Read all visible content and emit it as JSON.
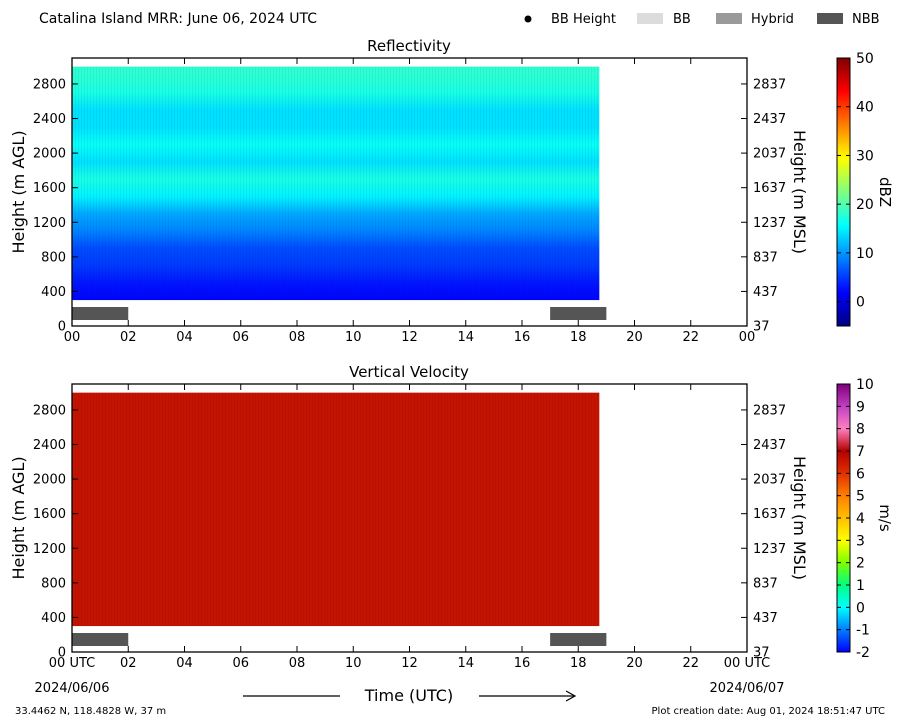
{
  "header": {
    "title": "Catalina Island MRR:  June 06, 2024 UTC",
    "legend": [
      {
        "label": "BB Height",
        "symbol": "dot",
        "color": "#000000"
      },
      {
        "label": "BB",
        "symbol": "rect",
        "color": "#dcdcdc"
      },
      {
        "label": "Hybrid",
        "symbol": "rect",
        "color": "#9a9a9a"
      },
      {
        "label": "NBB",
        "symbol": "rect",
        "color": "#555555"
      }
    ]
  },
  "chart_data": [
    {
      "type": "heatmap",
      "title": "Reflectivity",
      "ylabel_left": "Height (m AGL)",
      "ylabel_right": "Height (m MSL)",
      "x_ticks": [
        "00",
        "02",
        "04",
        "06",
        "08",
        "10",
        "12",
        "14",
        "16",
        "18",
        "20",
        "22",
        "00"
      ],
      "y_ticks_left": [
        0,
        400,
        800,
        1200,
        1600,
        2000,
        2400,
        2800
      ],
      "y_ticks_right": [
        37,
        437,
        837,
        1237,
        1637,
        2037,
        2437,
        2837
      ],
      "xlim_hours": [
        0,
        24
      ],
      "ylim_m": [
        0,
        3100
      ],
      "data_extent": {
        "hours": [
          0,
          18.75
        ],
        "height_m": [
          300,
          3000
        ]
      },
      "colorbar": {
        "label": "dBZ",
        "range": [
          -5,
          50
        ],
        "ticks": [
          0,
          10,
          20,
          30,
          40,
          50
        ],
        "colors": [
          "#00007f",
          "#0000ff",
          "#007fff",
          "#00ffff",
          "#7fff7f",
          "#ffff00",
          "#ff7f00",
          "#ff0000",
          "#7f0000"
        ]
      },
      "profile_dbz": [
        {
          "height": 300,
          "value": 2
        },
        {
          "height": 500,
          "value": 3
        },
        {
          "height": 700,
          "value": 5
        },
        {
          "height": 900,
          "value": 6
        },
        {
          "height": 1100,
          "value": 9
        },
        {
          "height": 1300,
          "value": 11
        },
        {
          "height": 1500,
          "value": 15
        },
        {
          "height": 1700,
          "value": 17
        },
        {
          "height": 1900,
          "value": 14
        },
        {
          "height": 2100,
          "value": 16
        },
        {
          "height": 2300,
          "value": 14
        },
        {
          "height": 2500,
          "value": 14
        },
        {
          "height": 2700,
          "value": 17
        },
        {
          "height": 2900,
          "value": 18
        }
      ],
      "echo_segments": [
        {
          "label": "NBB",
          "start_hour": 0,
          "end_hour": 2.0
        },
        {
          "label": "NBB",
          "start_hour": 17.0,
          "end_hour": 19.0
        }
      ]
    },
    {
      "type": "heatmap",
      "title": "Vertical Velocity",
      "ylabel_left": "Height (m AGL)",
      "ylabel_right": "Height (m MSL)",
      "xlabel": "Time (UTC)",
      "x_ticks": [
        "00 UTC",
        "02",
        "04",
        "06",
        "08",
        "10",
        "12",
        "14",
        "16",
        "18",
        "20",
        "22",
        "00 UTC"
      ],
      "x_subticks": [
        "2024/06/06",
        "2024/06/07"
      ],
      "y_ticks_left": [
        0,
        400,
        800,
        1200,
        1600,
        2000,
        2400,
        2800
      ],
      "y_ticks_right": [
        37,
        437,
        837,
        1237,
        1637,
        2037,
        2437,
        2837
      ],
      "xlim_hours": [
        0,
        24
      ],
      "ylim_m": [
        0,
        3100
      ],
      "data_extent": {
        "hours": [
          0,
          18.75
        ],
        "height_m": [
          300,
          3000
        ]
      },
      "field_value_ms": 6.5,
      "field_color": "#c21400",
      "colorbar": {
        "label": "m/s",
        "range": [
          -2,
          10
        ],
        "ticks": [
          -2,
          -1,
          0,
          1,
          2,
          3,
          4,
          5,
          6,
          7,
          8,
          9,
          10
        ],
        "colors": [
          "#0000ff",
          "#007fff",
          "#00ffff",
          "#00ff7f",
          "#7fff00",
          "#ffff00",
          "#ffbf00",
          "#ff7f00",
          "#e03000",
          "#b40000",
          "#ff80c0",
          "#c040c0",
          "#800080"
        ]
      },
      "echo_segments": [
        {
          "label": "NBB",
          "start_hour": 0,
          "end_hour": 2.0
        },
        {
          "label": "NBB",
          "start_hour": 17.0,
          "end_hour": 19.0
        }
      ]
    }
  ],
  "footer": {
    "location": "33.4462 N, 118.4828 W, 37 m",
    "creation": "Plot creation date: Aug 01, 2024 18:51:47 UTC"
  }
}
